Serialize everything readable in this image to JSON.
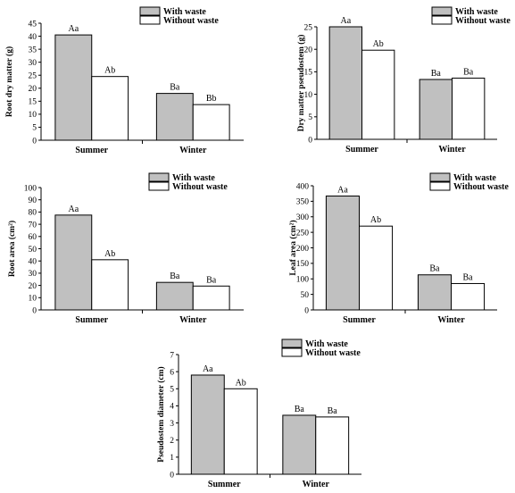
{
  "legend_labels": [
    "With waste",
    "Without waste"
  ],
  "colors": {
    "with_waste": "#c0c0c0",
    "without_waste": "#ffffff",
    "stroke": "#000000"
  },
  "chart_data": [
    {
      "type": "bar",
      "ylabel": "Root dry matter (g)",
      "categories": [
        "Summer",
        "Winter"
      ],
      "ylim": [
        0,
        45
      ],
      "yticks": [
        "0",
        "5",
        "10",
        "15",
        "20",
        "25",
        "30",
        "35",
        "40",
        "45"
      ],
      "series": [
        {
          "name": "With waste",
          "values": [
            40.5,
            18
          ],
          "labels": [
            "Aa",
            "Ba"
          ]
        },
        {
          "name": "Without waste",
          "values": [
            24.5,
            13.7
          ],
          "labels": [
            "Ab",
            "Bb"
          ]
        }
      ],
      "legend": "top-right"
    },
    {
      "type": "bar",
      "ylabel": "Dry matter pseudostem (g)",
      "categories": [
        "Summer",
        "Winter"
      ],
      "ylim": [
        0,
        25
      ],
      "yticks": [
        "0",
        "5",
        "10",
        "15",
        "20",
        "25"
      ],
      "series": [
        {
          "name": "With waste",
          "values": [
            25,
            13.3
          ],
          "labels": [
            "Aa",
            "Ba"
          ]
        },
        {
          "name": "Without waste",
          "values": [
            19.8,
            13.6
          ],
          "labels": [
            "Ab",
            "Ba"
          ]
        }
      ],
      "legend": "top-right"
    },
    {
      "type": "bar",
      "ylabel": "Root area (cm²)",
      "categories": [
        "Summer",
        "Winter"
      ],
      "ylim": [
        0,
        100
      ],
      "yticks": [
        "0",
        "10",
        "20",
        "30",
        "40",
        "50",
        "60",
        "70",
        "80",
        "90",
        "100"
      ],
      "series": [
        {
          "name": "With waste",
          "values": [
            77.5,
            22.5
          ],
          "labels": [
            "Aa",
            "Ba"
          ]
        },
        {
          "name": "Without waste",
          "values": [
            41,
            19.5
          ],
          "labels": [
            "Ab",
            "Ba"
          ]
        }
      ],
      "legend": "top-right"
    },
    {
      "type": "bar",
      "ylabel": "Leaf area (cm²)",
      "categories": [
        "Summer",
        "Winter"
      ],
      "ylim": [
        0,
        400
      ],
      "yticks": [
        "0",
        "50",
        "100",
        "150",
        "200",
        "250",
        "300",
        "350",
        "400"
      ],
      "series": [
        {
          "name": "With waste",
          "values": [
            367,
            113
          ],
          "labels": [
            "Aa",
            "Ba"
          ]
        },
        {
          "name": "Without waste",
          "values": [
            270,
            85
          ],
          "labels": [
            "Ab",
            "Ba"
          ]
        }
      ],
      "legend": "top-right"
    },
    {
      "type": "bar",
      "ylabel": "Pseudostem diameter (cm)",
      "categories": [
        "Summer",
        "Winter"
      ],
      "ylim": [
        0,
        7
      ],
      "yticks": [
        "0",
        "1",
        "2",
        "3",
        "4",
        "5",
        "6",
        "7"
      ],
      "series": [
        {
          "name": "With waste",
          "values": [
            5.8,
            3.45
          ],
          "labels": [
            "Aa",
            "Ba"
          ]
        },
        {
          "name": "Without waste",
          "values": [
            5,
            3.35
          ],
          "labels": [
            "Ab",
            "Ba"
          ]
        }
      ],
      "legend": "top-right"
    }
  ]
}
